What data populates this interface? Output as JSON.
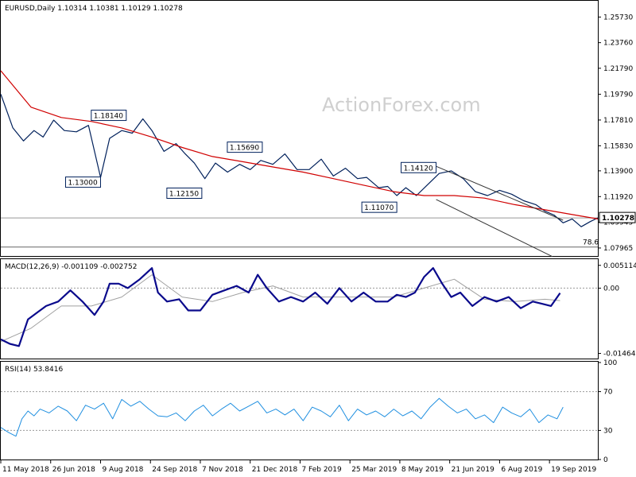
{
  "watermark": "ActionForex.com",
  "chart_data": [
    {
      "type": "line",
      "title": "EURUSD,Daily  1.10314 1.10381 1.10129 1.10278",
      "price_axis_ticks": [
        1.2573,
        1.2376,
        1.2179,
        1.1979,
        1.1781,
        1.1583,
        1.139,
        1.1192,
        1.09945,
        1.07965
      ],
      "price_axis_labels": [
        "1.25730",
        "1.23760",
        "1.21790",
        "1.19790",
        "1.17810",
        "1.15830",
        "1.13900",
        "1.11920",
        "1.09945",
        "1.07965"
      ],
      "ylim": [
        1.0735,
        1.2698
      ],
      "current_price": 1.10278,
      "current_price_label": "1.10278",
      "fib_label": "78.6",
      "fib_level": 1.0804,
      "x_labels": [
        "11 May 2018",
        "26 Jun 2018",
        "9 Aug 2018",
        "24 Sep 2018",
        "7 Nov 2018",
        "21 Dec 2018",
        "7 Feb 2019",
        "25 Mar 2019",
        "8 May 2019",
        "21 Jun 2019",
        "6 Aug 2019",
        "19 Sep 2019"
      ],
      "x_positions": [
        0,
        33,
        66,
        99,
        132,
        165,
        198,
        231,
        264,
        297,
        330,
        363
      ],
      "x_domain": [
        0,
        395
      ],
      "price_series": {
        "x": [
          0,
          8,
          15,
          22,
          28,
          35,
          42,
          50,
          58,
          66,
          72,
          80,
          87,
          94,
          100,
          108,
          116,
          122,
          128,
          135,
          142,
          150,
          158,
          165,
          172,
          180,
          188,
          196,
          204,
          212,
          220,
          228,
          236,
          242,
          250,
          256,
          262,
          268,
          275,
          282,
          290,
          298,
          306,
          314,
          322,
          330,
          338,
          346,
          354,
          360,
          366,
          372,
          378,
          384,
          390,
          395
        ],
        "y": [
          1.198,
          1.172,
          1.162,
          1.17,
          1.165,
          1.178,
          1.17,
          1.169,
          1.174,
          1.134,
          1.164,
          1.17,
          1.168,
          1.179,
          1.17,
          1.154,
          1.16,
          1.152,
          1.145,
          1.133,
          1.145,
          1.138,
          1.144,
          1.14,
          1.147,
          1.144,
          1.152,
          1.14,
          1.14,
          1.148,
          1.135,
          1.141,
          1.133,
          1.134,
          1.126,
          1.127,
          1.12,
          1.126,
          1.12,
          1.128,
          1.137,
          1.139,
          1.133,
          1.123,
          1.12,
          1.124,
          1.121,
          1.116,
          1.113,
          1.108,
          1.105,
          1.099,
          1.102,
          1.096,
          1.1,
          1.1028
        ]
      },
      "ma_series": {
        "x": [
          0,
          20,
          40,
          60,
          80,
          100,
          120,
          140,
          160,
          180,
          200,
          220,
          240,
          260,
          280,
          300,
          320,
          340,
          360,
          380,
          395
        ],
        "y": [
          1.216,
          1.188,
          1.18,
          1.177,
          1.172,
          1.165,
          1.157,
          1.15,
          1.146,
          1.142,
          1.138,
          1.133,
          1.128,
          1.123,
          1.12,
          1.12,
          1.118,
          1.113,
          1.109,
          1.105,
          1.102
        ]
      },
      "annotations": [
        {
          "label": "1.18140",
          "x": 83,
          "y": 1.1814
        },
        {
          "label": "1.13000",
          "x": 66,
          "y": 1.13
        },
        {
          "label": "1.15690",
          "x": 173,
          "y": 1.1569
        },
        {
          "label": "1.12150",
          "x": 133,
          "y": 1.1215
        },
        {
          "label": "1.14120",
          "x": 288,
          "y": 1.1412
        },
        {
          "label": "1.11070",
          "x": 262,
          "y": 1.1107
        }
      ],
      "channel": {
        "upper": {
          "x": [
            288,
            372
          ],
          "y": [
            1.1425,
            1.101
          ]
        },
        "lower": {
          "x": [
            288,
            365
          ],
          "y": [
            1.117,
            1.073
          ]
        }
      }
    },
    {
      "type": "line",
      "title": "MACD(12,26,9) -0.001109 -0.002752",
      "axis_labels": [
        "0.005114",
        "0.00",
        "-0.014647"
      ],
      "axis_values": [
        0.005114,
        0.0,
        -0.014647
      ],
      "ylim": [
        -0.0158,
        0.0065
      ],
      "macd": {
        "x": [
          0,
          6,
          12,
          18,
          24,
          30,
          38,
          46,
          54,
          62,
          68,
          72,
          78,
          84,
          92,
          100,
          104,
          110,
          118,
          124,
          132,
          140,
          148,
          156,
          164,
          170,
          176,
          184,
          192,
          200,
          208,
          216,
          224,
          232,
          240,
          248,
          256,
          262,
          268,
          274,
          280,
          286,
          292,
          298,
          304,
          312,
          320,
          328,
          336,
          344,
          352,
          358,
          364,
          370
        ],
        "y": [
          -0.0115,
          -0.0125,
          -0.013,
          -0.007,
          -0.0055,
          -0.004,
          -0.003,
          -0.0005,
          -0.003,
          -0.006,
          -0.003,
          0.001,
          0.001,
          0.0,
          0.002,
          0.0045,
          -0.001,
          -0.003,
          -0.0025,
          -0.005,
          -0.005,
          -0.0015,
          -0.0005,
          0.0005,
          -0.001,
          0.003,
          0.0,
          -0.003,
          -0.002,
          -0.003,
          -0.001,
          -0.0035,
          0.0,
          -0.003,
          -0.001,
          -0.003,
          -0.003,
          -0.0015,
          -0.002,
          -0.001,
          0.0025,
          0.0045,
          0.001,
          -0.002,
          -0.001,
          -0.004,
          -0.002,
          -0.003,
          -0.002,
          -0.0045,
          -0.003,
          -0.0035,
          -0.004,
          -0.0011
        ]
      },
      "signal": {
        "x": [
          0,
          20,
          40,
          60,
          80,
          100,
          120,
          140,
          160,
          180,
          200,
          220,
          240,
          260,
          280,
          300,
          320,
          340,
          360,
          370
        ],
        "y": [
          -0.012,
          -0.009,
          -0.004,
          -0.004,
          -0.002,
          0.003,
          -0.002,
          -0.003,
          -0.001,
          0.0005,
          -0.002,
          -0.002,
          -0.002,
          -0.002,
          0.0,
          0.002,
          -0.0025,
          -0.003,
          -0.0025,
          -0.0028
        ]
      }
    },
    {
      "type": "line",
      "title": "RSI(14) 53.8416",
      "axis_labels": [
        "100",
        "70",
        "30",
        "0"
      ],
      "axis_values": [
        100,
        70,
        30,
        0
      ],
      "ylim": [
        0,
        100
      ],
      "rsi": {
        "x": [
          0,
          5,
          10,
          14,
          18,
          22,
          26,
          32,
          38,
          44,
          50,
          56,
          62,
          68,
          74,
          80,
          86,
          92,
          98,
          104,
          110,
          116,
          122,
          128,
          134,
          140,
          146,
          152,
          158,
          164,
          170,
          176,
          182,
          188,
          194,
          200,
          206,
          212,
          218,
          224,
          230,
          236,
          242,
          248,
          254,
          260,
          266,
          272,
          278,
          284,
          290,
          296,
          302,
          308,
          314,
          320,
          326,
          332,
          338,
          344,
          350,
          356,
          362,
          368,
          372
        ],
        "y": [
          33,
          28,
          24,
          42,
          50,
          45,
          52,
          48,
          55,
          50,
          40,
          56,
          52,
          58,
          42,
          62,
          55,
          60,
          52,
          45,
          44,
          48,
          40,
          50,
          56,
          45,
          52,
          58,
          50,
          55,
          60,
          48,
          52,
          46,
          52,
          40,
          54,
          50,
          44,
          56,
          40,
          52,
          46,
          50,
          44,
          52,
          45,
          50,
          42,
          54,
          63,
          55,
          48,
          52,
          42,
          46,
          38,
          54,
          48,
          44,
          52,
          38,
          46,
          42,
          54
        ]
      }
    }
  ]
}
